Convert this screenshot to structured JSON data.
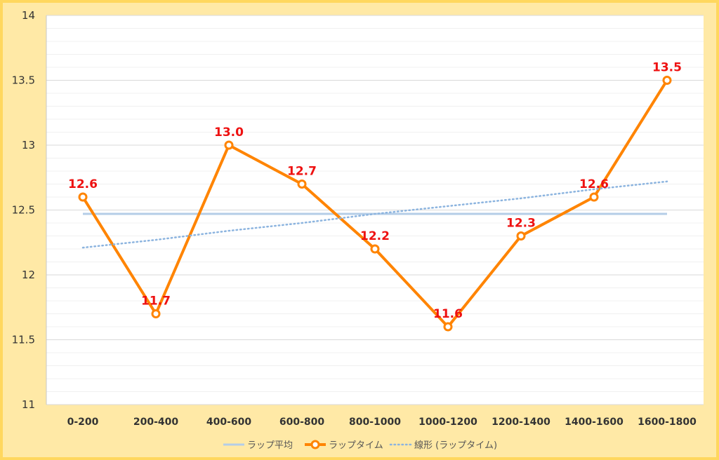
{
  "chart_data": {
    "type": "line",
    "categories": [
      "0-200",
      "200-400",
      "400-600",
      "600-800",
      "800-1000",
      "1000-1200",
      "1200-1400",
      "1400-1600",
      "1600-1800"
    ],
    "series": [
      {
        "name": "ラップ平均",
        "values": [
          12.47,
          12.47,
          12.47,
          12.47,
          12.47,
          12.47,
          12.47,
          12.47,
          12.47
        ],
        "color": "#b4cde7",
        "style": "solid"
      },
      {
        "name": "ラップタイム",
        "values": [
          12.6,
          11.7,
          13.0,
          12.7,
          12.2,
          11.6,
          12.3,
          12.6,
          13.5
        ],
        "color": "#ff8400",
        "style": "solid-markers"
      },
      {
        "name": "線形 (ラップタイム)",
        "values": [
          12.21,
          12.27,
          12.34,
          12.4,
          12.47,
          12.53,
          12.59,
          12.66,
          12.72
        ],
        "color": "#8cb4df",
        "style": "dotted"
      }
    ],
    "data_labels": [
      "12.6",
      "11.7",
      "13.0",
      "12.7",
      "12.2",
      "11.6",
      "12.3",
      "12.6",
      "13.5"
    ],
    "ylim": [
      11,
      14
    ],
    "yticks": [
      "11",
      "11.5",
      "12",
      "12.5",
      "13",
      "13.5",
      "14"
    ],
    "grid": true,
    "legend_position": "bottom",
    "colors": {
      "frame_bg": "#ffe9a6",
      "frame_border": "#ffd75e",
      "plot_bg": "#ffffff",
      "label": "#ee1111"
    }
  }
}
